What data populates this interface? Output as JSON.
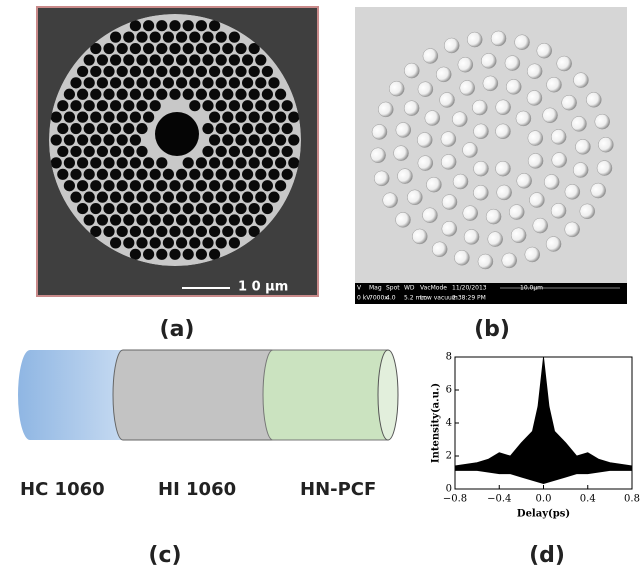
{
  "panels": {
    "a": {
      "label": "(a)",
      "scale_bar": "1 0 μm"
    },
    "b": {
      "label": "(b)",
      "info_header": [
        "V",
        "Mag",
        "Spot",
        "WD",
        "VacMode",
        "11/20/2013",
        "10.0μm"
      ],
      "info_values": [
        "0 kV",
        "7000x",
        "4.0",
        "5.2 mm",
        "Low vacuum",
        "2:38:29 PM"
      ]
    },
    "c": {
      "label": "(c)",
      "segments": [
        "HC 1060",
        "HI 1060",
        "HN-PCF"
      ]
    }
  },
  "chart_data": {
    "type": "area",
    "panel_label": "(d)",
    "x_label": "Delay(ps)",
    "y_label": "Intensity(a.u.)",
    "x": [
      -0.8,
      -0.7,
      -0.6,
      -0.5,
      -0.4,
      -0.3,
      -0.2,
      -0.1,
      -0.05,
      0,
      0.05,
      0.1,
      0.2,
      0.3,
      0.4,
      0.5,
      0.6,
      0.7,
      0.8
    ],
    "series": [
      {
        "color": "#000000",
        "values": [
          1.4,
          1.5,
          1.6,
          1.8,
          2.2,
          2.0,
          2.8,
          3.5,
          5,
          8,
          5,
          3.5,
          2.8,
          2.0,
          2.2,
          1.8,
          1.6,
          1.5,
          1.4
        ]
      },
      {
        "color": "#ffffff",
        "values": [
          1.1,
          1.1,
          1.1,
          1.0,
          0.9,
          0.9,
          0.7,
          0.5,
          0.4,
          0.3,
          0.4,
          0.5,
          0.7,
          0.9,
          0.9,
          1.0,
          1.1,
          1.1,
          1.1
        ]
      }
    ],
    "xlim": [
      -0.8,
      0.8
    ],
    "ylim": [
      0,
      8
    ],
    "xticks": [
      {
        "value": -0.8,
        "label": "−0.8"
      },
      {
        "value": -0.4,
        "label": "−0.4"
      },
      {
        "value": 0,
        "label": "0.0"
      },
      {
        "value": 0.4,
        "label": "0.4"
      },
      {
        "value": 0.8,
        "label": "0.8"
      }
    ],
    "yticks": [
      0,
      2,
      4,
      6,
      8
    ]
  }
}
